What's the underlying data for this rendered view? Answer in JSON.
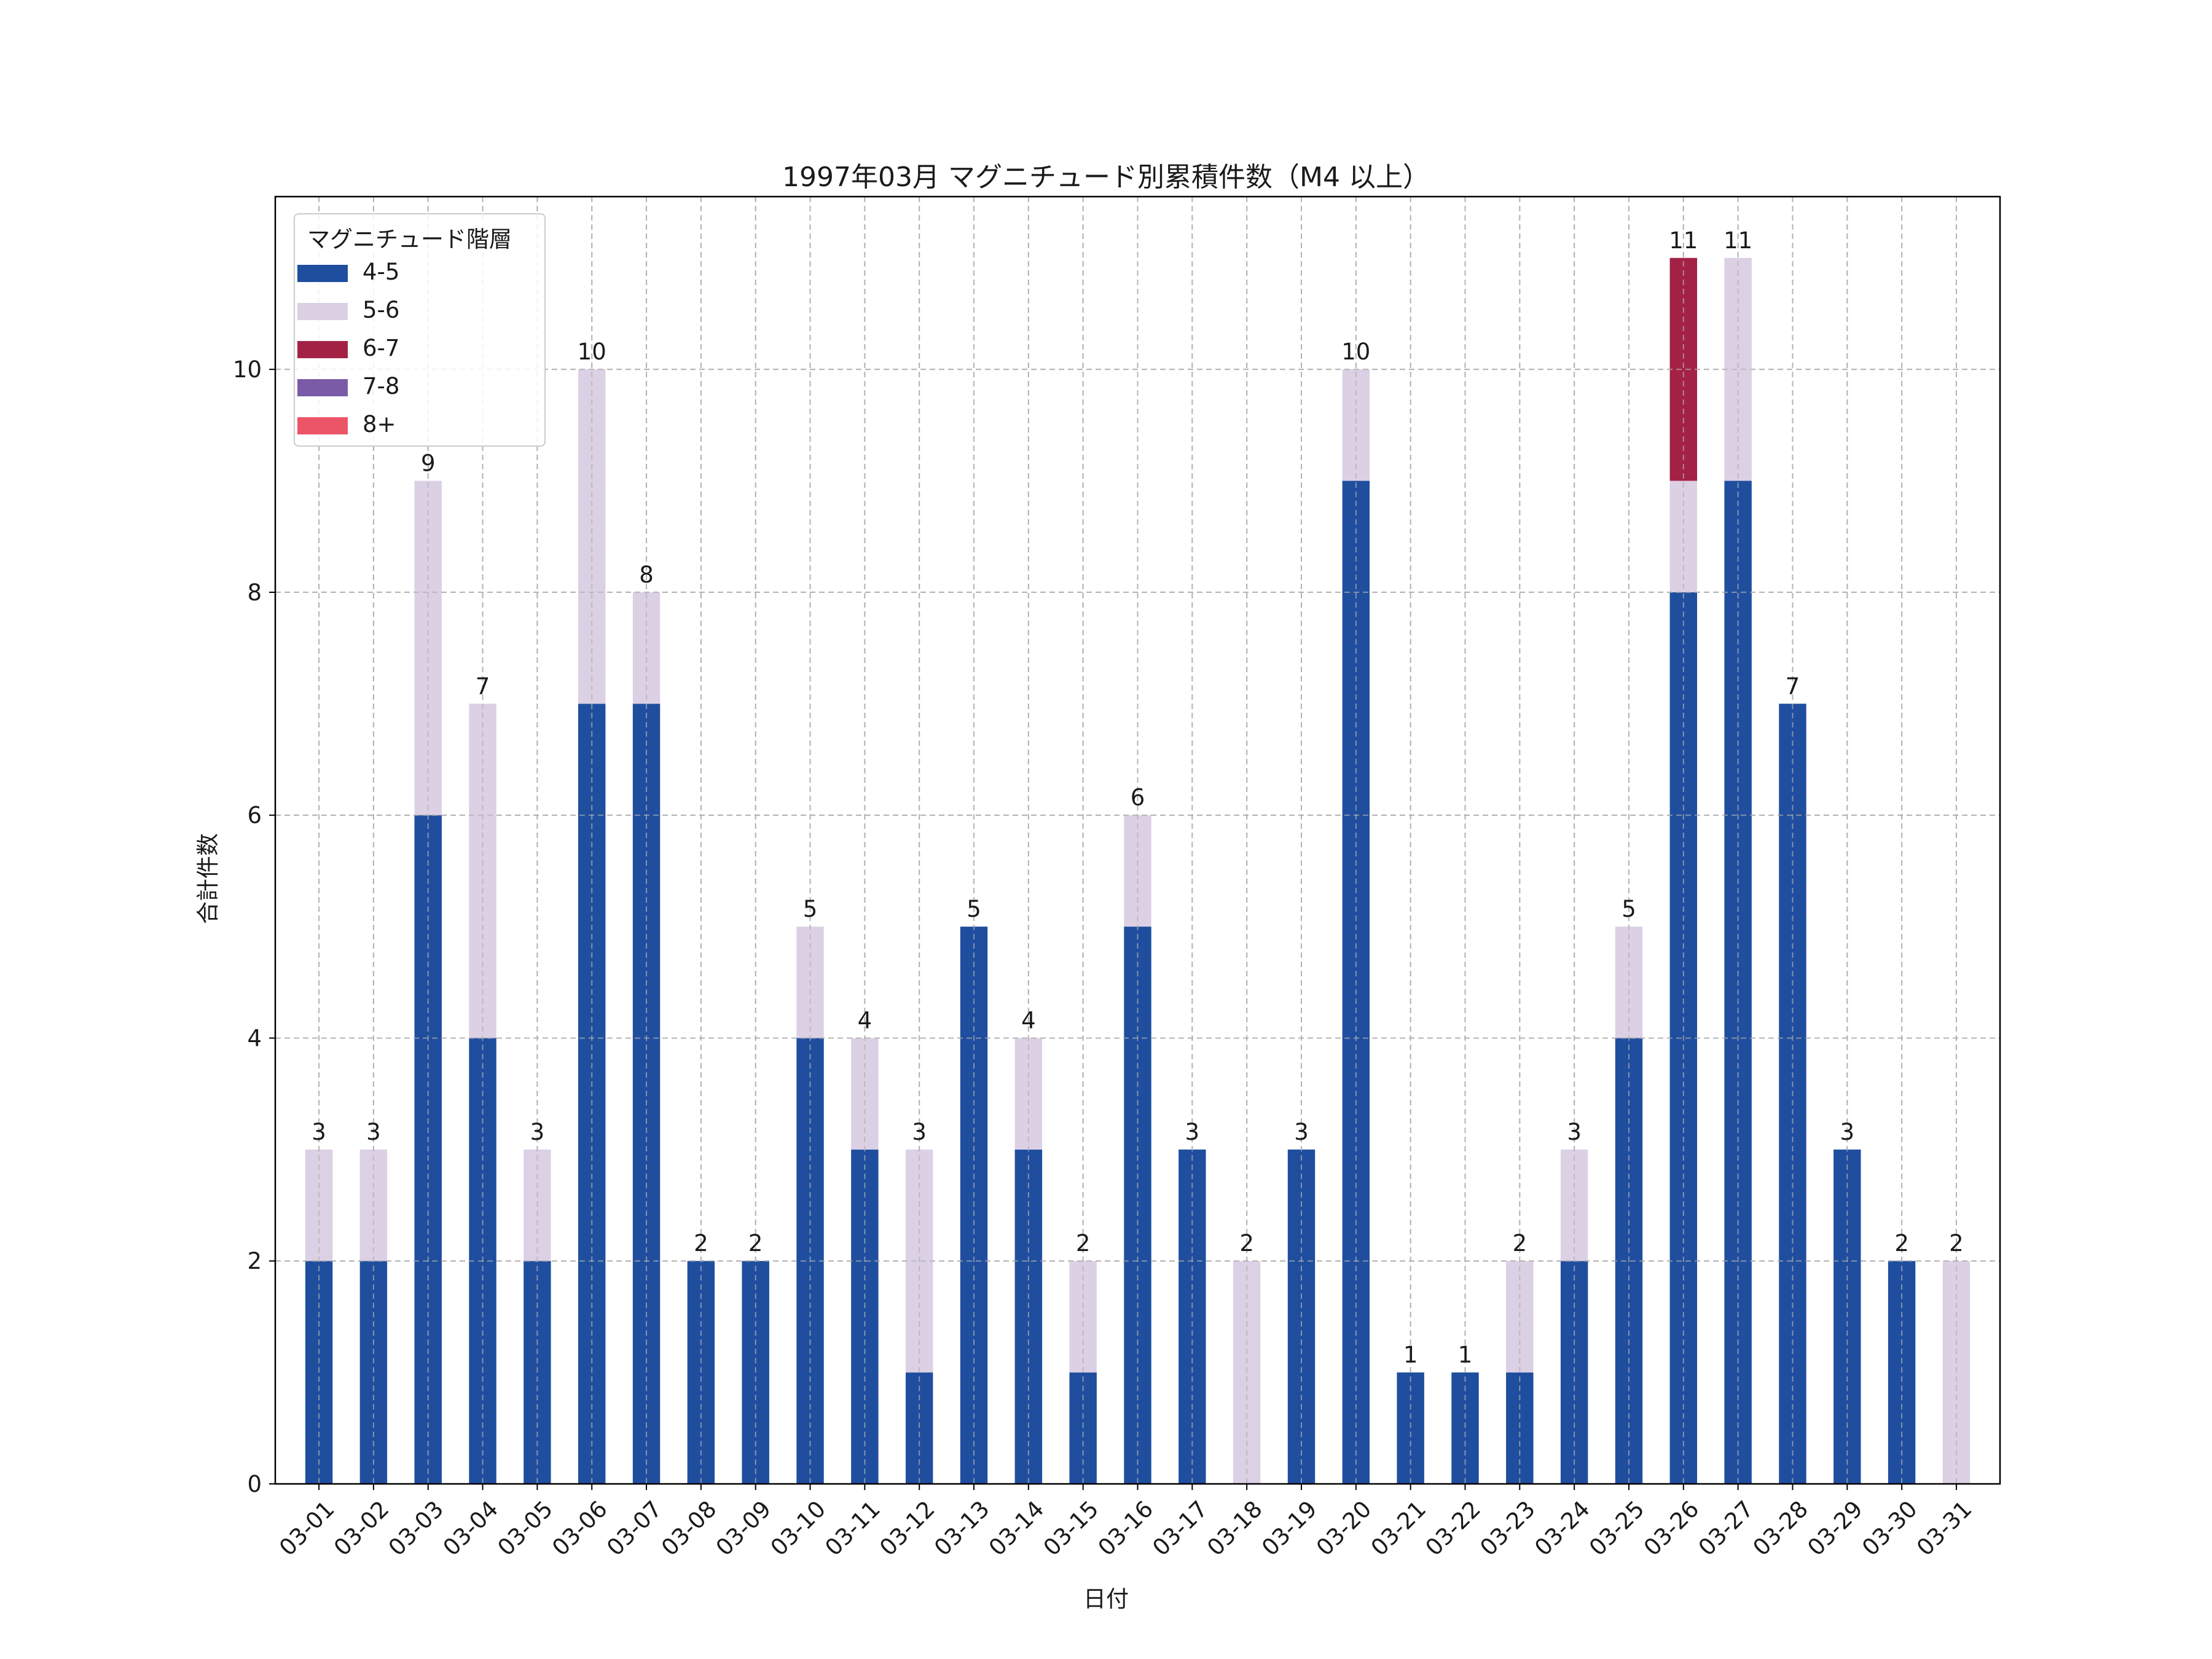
{
  "chart_data": {
    "type": "bar",
    "stacked": true,
    "title": "1997年03月 マグニチュード別累積件数（M4 以上）",
    "xlabel": "日付",
    "ylabel": "合計件数",
    "ylim": [
      0,
      11.55
    ],
    "yticks": [
      0,
      2,
      4,
      6,
      8,
      10
    ],
    "grid": true,
    "legend_title": "マグニチュード階層",
    "legend_position": "top-left",
    "categories": [
      "03-01",
      "03-02",
      "03-03",
      "03-04",
      "03-05",
      "03-06",
      "03-07",
      "03-08",
      "03-09",
      "03-10",
      "03-11",
      "03-12",
      "03-13",
      "03-14",
      "03-15",
      "03-16",
      "03-17",
      "03-18",
      "03-19",
      "03-20",
      "03-21",
      "03-22",
      "03-23",
      "03-24",
      "03-25",
      "03-26",
      "03-27",
      "03-28",
      "03-29",
      "03-30",
      "03-31"
    ],
    "series": [
      {
        "name": "4-5",
        "color": "#1f4e9f",
        "values": [
          2,
          2,
          6,
          4,
          2,
          7,
          7,
          2,
          2,
          4,
          3,
          1,
          5,
          3,
          1,
          5,
          3,
          0,
          3,
          9,
          1,
          1,
          1,
          2,
          4,
          8,
          9,
          7,
          3,
          2,
          0
        ]
      },
      {
        "name": "5-6",
        "color": "#dcd0e4",
        "values": [
          1,
          1,
          3,
          3,
          1,
          3,
          1,
          0,
          0,
          1,
          1,
          2,
          0,
          1,
          1,
          1,
          0,
          2,
          0,
          1,
          0,
          0,
          1,
          1,
          1,
          1,
          2,
          0,
          0,
          0,
          2
        ]
      },
      {
        "name": "6-7",
        "color": "#a42146",
        "values": [
          0,
          0,
          0,
          0,
          0,
          0,
          0,
          0,
          0,
          0,
          0,
          0,
          0,
          0,
          0,
          0,
          0,
          0,
          0,
          0,
          0,
          0,
          0,
          0,
          0,
          2,
          0,
          0,
          0,
          0,
          0
        ]
      },
      {
        "name": "7-8",
        "color": "#7a5ba8",
        "values": [
          0,
          0,
          0,
          0,
          0,
          0,
          0,
          0,
          0,
          0,
          0,
          0,
          0,
          0,
          0,
          0,
          0,
          0,
          0,
          0,
          0,
          0,
          0,
          0,
          0,
          0,
          0,
          0,
          0,
          0,
          0
        ]
      },
      {
        "name": "8+",
        "color": "#ec5468",
        "values": [
          0,
          0,
          0,
          0,
          0,
          0,
          0,
          0,
          0,
          0,
          0,
          0,
          0,
          0,
          0,
          0,
          0,
          0,
          0,
          0,
          0,
          0,
          0,
          0,
          0,
          0,
          0,
          0,
          0,
          0,
          0
        ]
      }
    ],
    "totals": [
      3,
      3,
      9,
      7,
      3,
      10,
      8,
      2,
      2,
      5,
      4,
      3,
      5,
      4,
      2,
      6,
      3,
      2,
      3,
      10,
      1,
      1,
      2,
      3,
      5,
      11,
      11,
      7,
      3,
      2,
      2
    ]
  }
}
